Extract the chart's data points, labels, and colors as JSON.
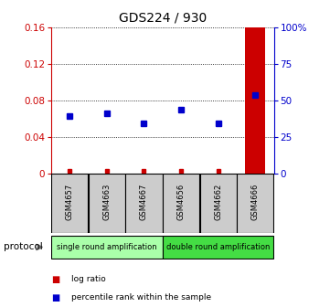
{
  "title": "GDS224 / 930",
  "samples": [
    "GSM4657",
    "GSM4663",
    "GSM4667",
    "GSM4656",
    "GSM4662",
    "GSM4666"
  ],
  "log_ratio": [
    0.003,
    0.003,
    0.003,
    0.003,
    0.003,
    0.16
  ],
  "percentile_rank": [
    0.063,
    0.066,
    0.055,
    0.07,
    0.055,
    0.086
  ],
  "ylim_left": [
    0,
    0.16
  ],
  "ylim_right": [
    0,
    100
  ],
  "yticks_left": [
    0,
    0.04,
    0.08,
    0.12,
    0.16
  ],
  "yticks_right": [
    0,
    25,
    50,
    75,
    100
  ],
  "ytick_labels_left": [
    "0",
    "0.04",
    "0.08",
    "0.12",
    "0.16"
  ],
  "ytick_labels_right": [
    "0",
    "25",
    "50",
    "75",
    "100%"
  ],
  "protocol_groups": [
    {
      "label": "single round amplification",
      "color": "#aaffaa",
      "start": 0,
      "end": 3
    },
    {
      "label": "double round amplification",
      "color": "#44dd44",
      "start": 3,
      "end": 6
    }
  ],
  "log_ratio_color": "#cc0000",
  "percentile_color": "#0000cc",
  "sample_box_color": "#cccccc",
  "protocol_label": "protocol",
  "legend_log_ratio": "log ratio",
  "legend_percentile": "percentile rank within the sample",
  "title_fontsize": 10,
  "tick_fontsize": 7.5
}
